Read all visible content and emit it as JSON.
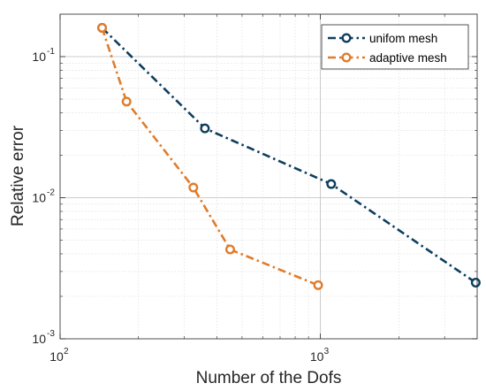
{
  "chart_data": {
    "type": "line",
    "xlabel": "Number of the  Dofs",
    "ylabel": "Relative error",
    "xscale": "log",
    "yscale": "log",
    "xlim": [
      100,
      4000
    ],
    "ylim": [
      0.001,
      0.2
    ],
    "grid": true,
    "minor_grid": true,
    "legend_position": "top-right",
    "x_ticks": [
      {
        "value": 100,
        "base": "10",
        "exp": "2"
      },
      {
        "value": 1000,
        "base": "10",
        "exp": "3"
      }
    ],
    "y_ticks": [
      {
        "value": 0.001,
        "base": "10",
        "exp": "-3"
      },
      {
        "value": 0.01,
        "base": "10",
        "exp": "-2"
      },
      {
        "value": 0.1,
        "base": "10",
        "exp": "-1"
      }
    ],
    "series": [
      {
        "name": "unifom mesh",
        "color": "#0e3e5e",
        "line_style": "dash-dot",
        "marker": "circle",
        "x": [
          145,
          360,
          1100,
          3950
        ],
        "y": [
          0.16,
          0.031,
          0.0125,
          0.0025
        ]
      },
      {
        "name": "adaptive mesh",
        "color": "#e07c2a",
        "line_style": "dash-dot",
        "marker": "circle",
        "x": [
          145,
          180,
          325,
          450,
          980
        ],
        "y": [
          0.16,
          0.048,
          0.0118,
          0.0043,
          0.0024
        ]
      }
    ]
  }
}
